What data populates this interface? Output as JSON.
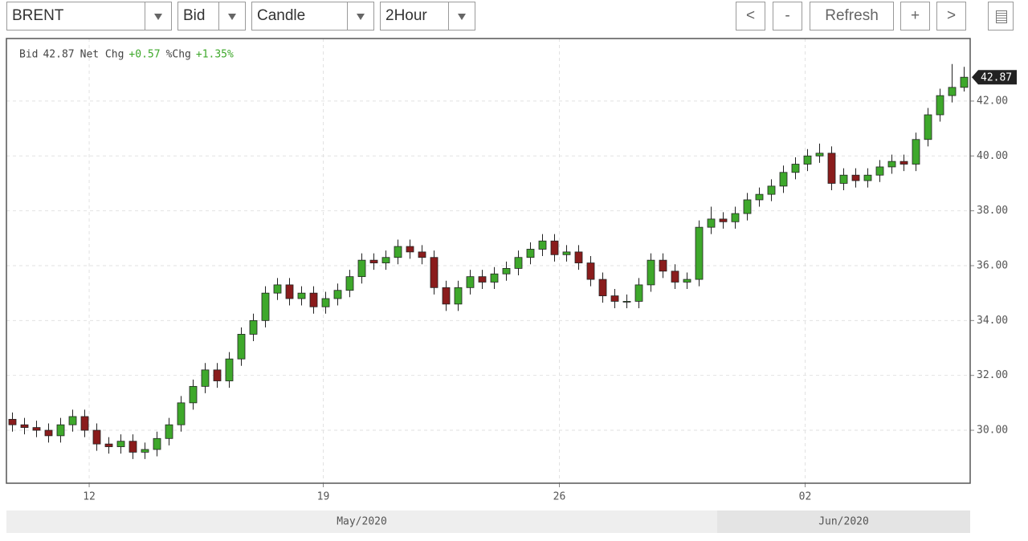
{
  "toolbar": {
    "dropdowns": [
      "BRENT",
      "Bid",
      "Candle",
      "2Hour"
    ],
    "buttons": [
      "<",
      "-",
      "Refresh",
      "+",
      ">"
    ]
  },
  "chart_data": {
    "type": "candlestick",
    "info": [
      {
        "label": "Bid",
        "value": "42.87"
      },
      {
        "label": "Net Chg",
        "value": "+0.57"
      },
      {
        "label": "%Chg",
        "value": "+1.35%"
      }
    ],
    "up_color": "#3ea82b",
    "down_color": "#8a1c1c",
    "grid": true,
    "xlim": [
      0,
      80
    ],
    "xticks": [
      {
        "value": 6.87,
        "label": "12"
      },
      {
        "value": 26.3,
        "label": "19"
      },
      {
        "value": 45.9,
        "label": "26"
      },
      {
        "value": 66.3,
        "label": "02"
      }
    ],
    "months": [
      {
        "label": "May/2020",
        "start": 0
      },
      {
        "label": "Jun/2020",
        "start": 59
      }
    ],
    "ylim": [
      28.07,
      44.28
    ],
    "yticks": [
      {
        "value": 30,
        "label": "30.00"
      },
      {
        "value": 32,
        "label": "32.00"
      },
      {
        "value": 34,
        "label": "34.00"
      },
      {
        "value": 36,
        "label": "36.00"
      },
      {
        "value": 38,
        "label": "38.00"
      },
      {
        "value": 40,
        "label": "40.00"
      },
      {
        "value": 42,
        "label": "42.00"
      }
    ],
    "open": [
      30.4,
      30.2,
      30.1,
      30.0,
      29.8,
      30.2,
      30.5,
      30.0,
      29.5,
      29.4,
      29.6,
      29.2,
      29.3,
      29.7,
      30.2,
      31.0,
      31.6,
      32.2,
      31.8,
      32.6,
      33.5,
      34.0,
      35.0,
      35.3,
      34.8,
      35.0,
      34.5,
      34.8,
      35.1,
      35.6,
      36.2,
      36.1,
      36.3,
      36.7,
      36.5,
      36.3,
      35.2,
      34.6,
      35.2,
      35.6,
      35.4,
      35.7,
      35.9,
      36.3,
      36.6,
      36.9,
      36.4,
      36.5,
      36.1,
      35.5,
      34.9,
      34.7,
      34.7,
      35.3,
      36.2,
      35.8,
      35.4,
      35.5,
      37.4,
      37.7,
      37.6,
      37.9,
      38.4,
      38.6,
      38.9,
      39.4,
      39.7,
      40.0,
      40.1,
      39.0,
      39.3,
      39.1,
      39.3,
      39.6,
      39.8,
      39.7,
      40.6,
      41.5,
      42.2,
      42.5
    ],
    "high": [
      30.65,
      30.45,
      30.35,
      30.25,
      30.45,
      30.75,
      30.75,
      30.25,
      29.75,
      29.85,
      29.85,
      29.55,
      29.95,
      30.45,
      31.25,
      31.85,
      32.45,
      32.45,
      32.85,
      33.75,
      34.25,
      35.25,
      35.55,
      35.55,
      35.25,
      35.25,
      35.05,
      35.35,
      35.85,
      36.45,
      36.45,
      36.55,
      36.95,
      36.95,
      36.75,
      36.55,
      35.45,
      35.45,
      35.85,
      35.85,
      35.95,
      36.15,
      36.55,
      36.85,
      37.15,
      37.15,
      36.75,
      36.75,
      36.35,
      35.75,
      35.15,
      34.95,
      35.55,
      36.45,
      36.45,
      36.05,
      35.75,
      37.65,
      38.15,
      37.95,
      38.15,
      38.65,
      38.85,
      39.15,
      39.65,
      39.95,
      40.25,
      40.45,
      40.35,
      39.55,
      39.55,
      39.55,
      39.85,
      40.05,
      40.05,
      40.85,
      41.75,
      42.45,
      43.35,
      43.25
    ],
    "low": [
      29.95,
      29.85,
      29.75,
      29.55,
      29.55,
      29.95,
      29.75,
      29.25,
      29.15,
      29.15,
      28.95,
      28.95,
      29.05,
      29.45,
      29.95,
      30.75,
      31.35,
      31.55,
      31.55,
      32.35,
      33.25,
      33.75,
      34.75,
      34.55,
      34.55,
      34.25,
      34.25,
      34.55,
      34.85,
      35.35,
      35.85,
      35.85,
      36.05,
      36.25,
      36.05,
      34.95,
      34.35,
      34.35,
      34.95,
      35.15,
      35.15,
      35.45,
      35.65,
      36.05,
      36.35,
      36.15,
      36.15,
      35.85,
      35.25,
      34.65,
      34.45,
      34.45,
      34.45,
      35.05,
      35.55,
      35.15,
      35.15,
      35.25,
      37.15,
      37.35,
      37.35,
      37.65,
      38.15,
      38.35,
      38.65,
      39.15,
      39.45,
      39.75,
      38.75,
      38.75,
      38.85,
      38.85,
      39.05,
      39.35,
      39.45,
      39.45,
      40.35,
      41.25,
      41.95,
      42.35
    ],
    "close": [
      30.2,
      30.1,
      30.0,
      29.8,
      30.2,
      30.5,
      30.0,
      29.5,
      29.4,
      29.6,
      29.2,
      29.3,
      29.7,
      30.2,
      31.0,
      31.6,
      32.2,
      31.8,
      32.6,
      33.5,
      34.0,
      35.0,
      35.3,
      34.8,
      35.0,
      34.5,
      34.8,
      35.1,
      35.6,
      36.2,
      36.1,
      36.3,
      36.7,
      36.5,
      36.3,
      35.2,
      34.6,
      35.2,
      35.6,
      35.4,
      35.7,
      35.9,
      36.3,
      36.6,
      36.9,
      36.4,
      36.5,
      36.1,
      35.5,
      34.9,
      34.7,
      34.7,
      35.3,
      36.2,
      35.8,
      35.4,
      35.5,
      37.4,
      37.7,
      37.6,
      37.9,
      38.4,
      38.6,
      38.9,
      39.4,
      39.7,
      40.0,
      40.1,
      39.0,
      39.3,
      39.1,
      39.3,
      39.6,
      39.8,
      39.7,
      40.6,
      41.5,
      42.2,
      42.5,
      42.87
    ]
  }
}
